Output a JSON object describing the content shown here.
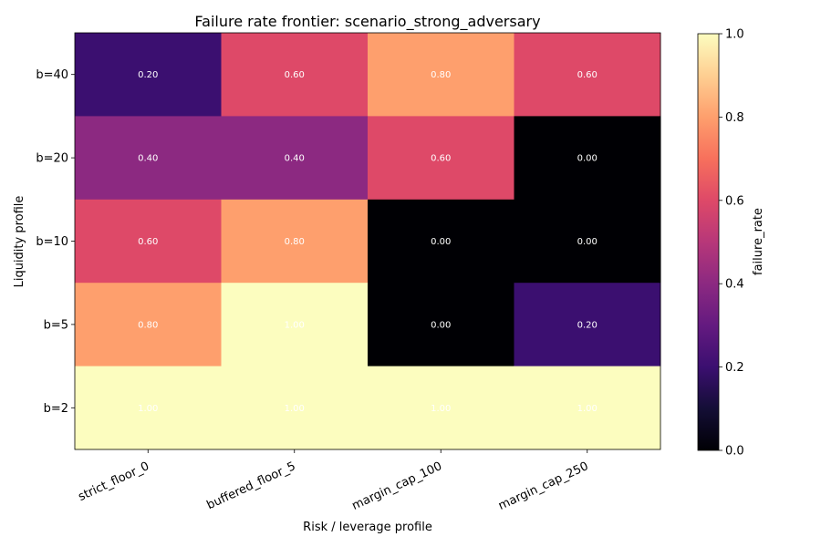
{
  "chart_data": {
    "type": "heatmap",
    "title": "Failure rate frontier: scenario_strong_adversary",
    "xlabel": "Risk / leverage profile",
    "ylabel": "Liquidity profile",
    "x_categories": [
      "strict_floor_0",
      "buffered_floor_5",
      "margin_cap_100",
      "margin_cap_250"
    ],
    "y_categories": [
      "b=40",
      "b=20",
      "b=10",
      "b=5",
      "b=2"
    ],
    "values": [
      [
        0.2,
        0.6,
        0.8,
        0.6
      ],
      [
        0.4,
        0.4,
        0.6,
        0.0
      ],
      [
        0.6,
        0.8,
        0.0,
        0.0
      ],
      [
        0.8,
        1.0,
        0.0,
        0.2
      ],
      [
        1.0,
        1.0,
        1.0,
        1.0
      ]
    ],
    "value_labels": [
      [
        "0.20",
        "0.60",
        "0.80",
        "0.60"
      ],
      [
        "0.40",
        "0.40",
        "0.60",
        "0.00"
      ],
      [
        "0.60",
        "0.80",
        "0.00",
        "0.00"
      ],
      [
        "0.80",
        "1.00",
        "0.00",
        "0.20"
      ],
      [
        "1.00",
        "1.00",
        "1.00",
        "1.00"
      ]
    ],
    "colormap": "magma",
    "vmin": 0,
    "vmax": 1,
    "colorbar": {
      "label": "failure_rate",
      "ticks": [
        0.0,
        0.2,
        0.4,
        0.6,
        0.8,
        1.0
      ],
      "tick_labels": [
        "0.0",
        "0.2",
        "0.4",
        "0.6",
        "0.8",
        "1.0"
      ]
    },
    "annotation_color": "#ffffff",
    "grid": false
  }
}
